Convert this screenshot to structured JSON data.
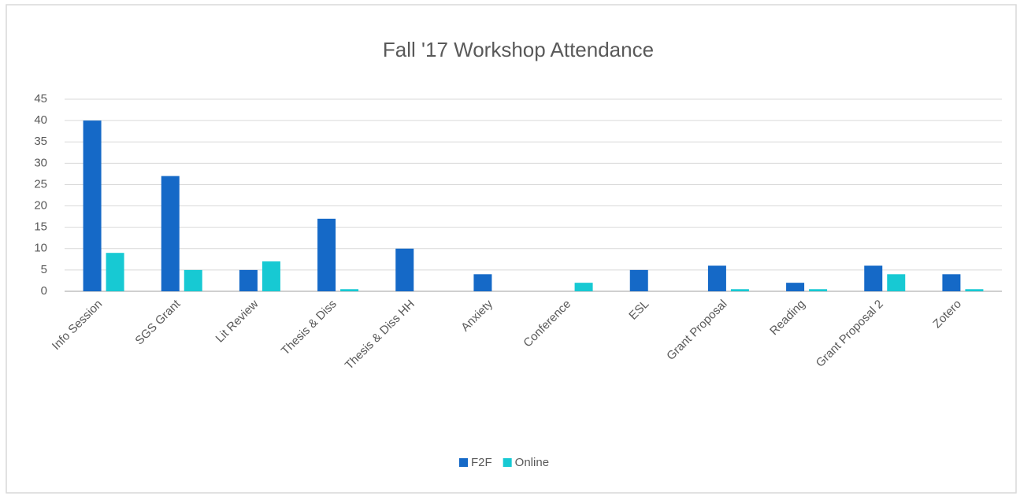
{
  "chart_data": {
    "type": "bar",
    "title": "Fall  '17 Workshop  Attendance",
    "categories": [
      "Info Session",
      "SGS Grant",
      "Lit Review",
      "Thesis & Diss",
      "Thesis & Diss HH",
      "Anxiety",
      "Conference",
      "ESL",
      "Grant Proposal",
      "Reading",
      "Grant Proposal 2",
      "Zotero"
    ],
    "series": [
      {
        "name": "F2F",
        "color": "#1569c7",
        "values": [
          40,
          27,
          5,
          17,
          10,
          4,
          0,
          5,
          6,
          2,
          6,
          4
        ]
      },
      {
        "name": "Online",
        "color": "#17c9d3",
        "values": [
          9,
          5,
          7,
          0.5,
          0,
          0,
          2,
          0,
          0.5,
          0.5,
          4,
          0.5
        ]
      }
    ],
    "ylim": [
      0,
      45
    ],
    "yticks": [
      0,
      5,
      10,
      15,
      20,
      25,
      30,
      35,
      40,
      45
    ],
    "grid": true,
    "legend": "bottom"
  }
}
